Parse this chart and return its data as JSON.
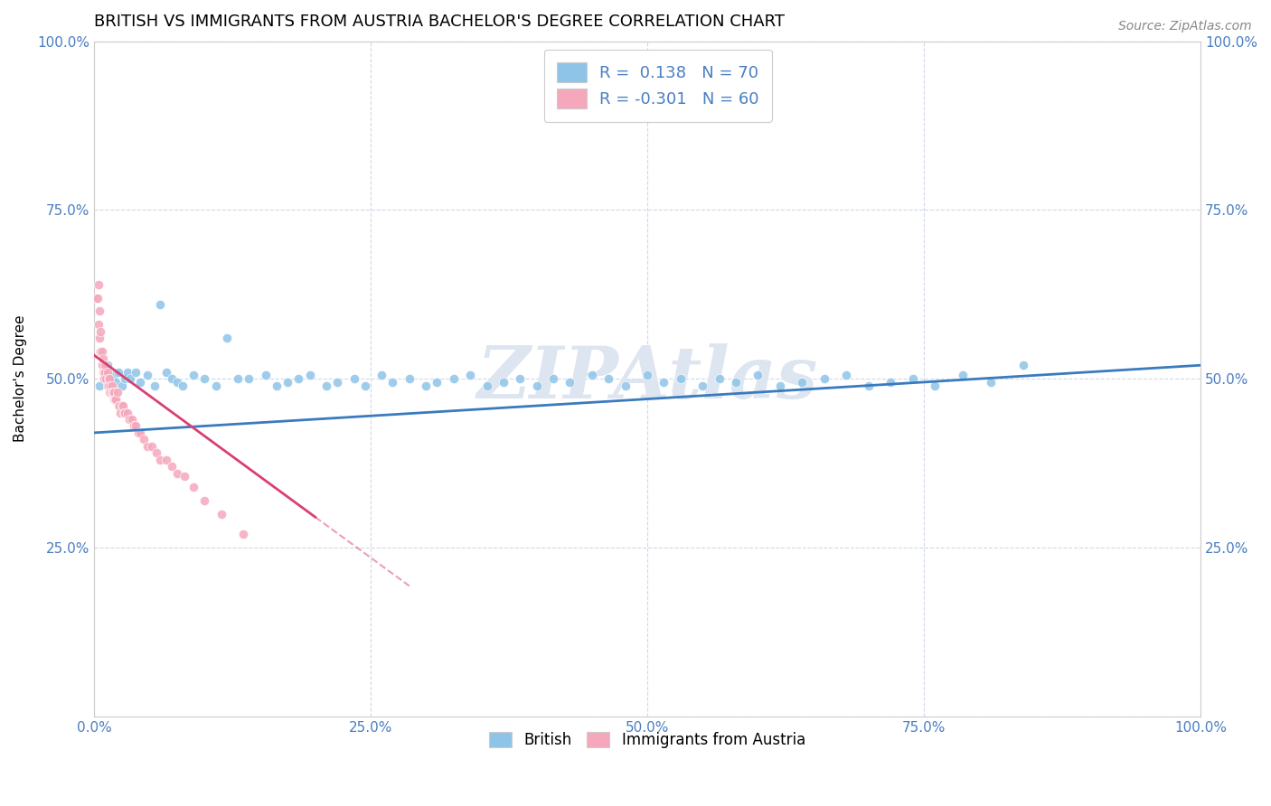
{
  "title": "BRITISH VS IMMIGRANTS FROM AUSTRIA BACHELOR'S DEGREE CORRELATION CHART",
  "source_text": "Source: ZipAtlas.com",
  "ylabel": "Bachelor's Degree",
  "xlim": [
    0.0,
    1.0
  ],
  "ylim": [
    0.0,
    1.0
  ],
  "xticks": [
    0.0,
    0.25,
    0.5,
    0.75,
    1.0
  ],
  "yticks": [
    0.0,
    0.25,
    0.5,
    0.75,
    1.0
  ],
  "xticklabels": [
    "0.0%",
    "25.0%",
    "50.0%",
    "75.0%",
    "100.0%"
  ],
  "yticklabels": [
    "",
    "25.0%",
    "50.0%",
    "75.0%",
    "100.0%"
  ],
  "right_yticks": [
    0.25,
    0.5,
    0.75,
    1.0
  ],
  "right_yticklabels": [
    "25.0%",
    "50.0%",
    "75.0%",
    "100.0%"
  ],
  "british_R": 0.138,
  "british_N": 70,
  "austria_R": -0.301,
  "austria_N": 60,
  "british_color": "#8ec4e8",
  "austria_color": "#f5a8bc",
  "british_line_color": "#3a7abf",
  "austria_line_color": "#d94070",
  "tick_color": "#4a7fc1",
  "title_fontsize": 13,
  "label_fontsize": 11,
  "tick_fontsize": 11,
  "watermark_color": "#dde5f0",
  "british_x": [
    0.005,
    0.008,
    0.01,
    0.012,
    0.015,
    0.018,
    0.02,
    0.022,
    0.025,
    0.028,
    0.03,
    0.033,
    0.038,
    0.042,
    0.048,
    0.055,
    0.06,
    0.065,
    0.07,
    0.075,
    0.08,
    0.09,
    0.1,
    0.11,
    0.12,
    0.13,
    0.14,
    0.155,
    0.165,
    0.175,
    0.185,
    0.195,
    0.21,
    0.22,
    0.235,
    0.245,
    0.26,
    0.27,
    0.285,
    0.3,
    0.31,
    0.325,
    0.34,
    0.355,
    0.37,
    0.385,
    0.4,
    0.415,
    0.43,
    0.45,
    0.465,
    0.48,
    0.5,
    0.515,
    0.53,
    0.55,
    0.565,
    0.58,
    0.6,
    0.62,
    0.64,
    0.66,
    0.68,
    0.7,
    0.72,
    0.74,
    0.76,
    0.785,
    0.81,
    0.84
  ],
  "british_y": [
    0.49,
    0.51,
    0.5,
    0.52,
    0.49,
    0.505,
    0.495,
    0.51,
    0.49,
    0.5,
    0.51,
    0.5,
    0.51,
    0.495,
    0.505,
    0.49,
    0.61,
    0.51,
    0.5,
    0.495,
    0.49,
    0.505,
    0.5,
    0.49,
    0.56,
    0.5,
    0.5,
    0.505,
    0.49,
    0.495,
    0.5,
    0.505,
    0.49,
    0.495,
    0.5,
    0.49,
    0.505,
    0.495,
    0.5,
    0.49,
    0.495,
    0.5,
    0.505,
    0.49,
    0.495,
    0.5,
    0.49,
    0.5,
    0.495,
    0.505,
    0.5,
    0.49,
    0.505,
    0.495,
    0.5,
    0.49,
    0.5,
    0.495,
    0.505,
    0.49,
    0.495,
    0.5,
    0.505,
    0.49,
    0.495,
    0.5,
    0.49,
    0.505,
    0.495,
    0.52
  ],
  "austria_x": [
    0.002,
    0.003,
    0.004,
    0.004,
    0.005,
    0.005,
    0.006,
    0.006,
    0.007,
    0.007,
    0.008,
    0.008,
    0.009,
    0.009,
    0.01,
    0.01,
    0.011,
    0.012,
    0.012,
    0.013,
    0.013,
    0.014,
    0.014,
    0.015,
    0.015,
    0.016,
    0.016,
    0.017,
    0.018,
    0.018,
    0.019,
    0.02,
    0.021,
    0.022,
    0.023,
    0.024,
    0.025,
    0.026,
    0.027,
    0.028,
    0.03,
    0.032,
    0.034,
    0.036,
    0.038,
    0.04,
    0.042,
    0.045,
    0.048,
    0.052,
    0.056,
    0.06,
    0.065,
    0.07,
    0.075,
    0.082,
    0.09,
    0.1,
    0.115,
    0.135
  ],
  "austria_y": [
    0.62,
    0.62,
    0.64,
    0.58,
    0.6,
    0.56,
    0.57,
    0.54,
    0.54,
    0.52,
    0.53,
    0.51,
    0.51,
    0.5,
    0.51,
    0.52,
    0.5,
    0.51,
    0.49,
    0.5,
    0.49,
    0.5,
    0.48,
    0.49,
    0.48,
    0.49,
    0.48,
    0.48,
    0.47,
    0.48,
    0.47,
    0.47,
    0.48,
    0.46,
    0.46,
    0.45,
    0.46,
    0.46,
    0.45,
    0.45,
    0.45,
    0.44,
    0.44,
    0.43,
    0.43,
    0.42,
    0.42,
    0.41,
    0.4,
    0.4,
    0.39,
    0.38,
    0.38,
    0.37,
    0.36,
    0.355,
    0.34,
    0.32,
    0.3,
    0.27
  ]
}
